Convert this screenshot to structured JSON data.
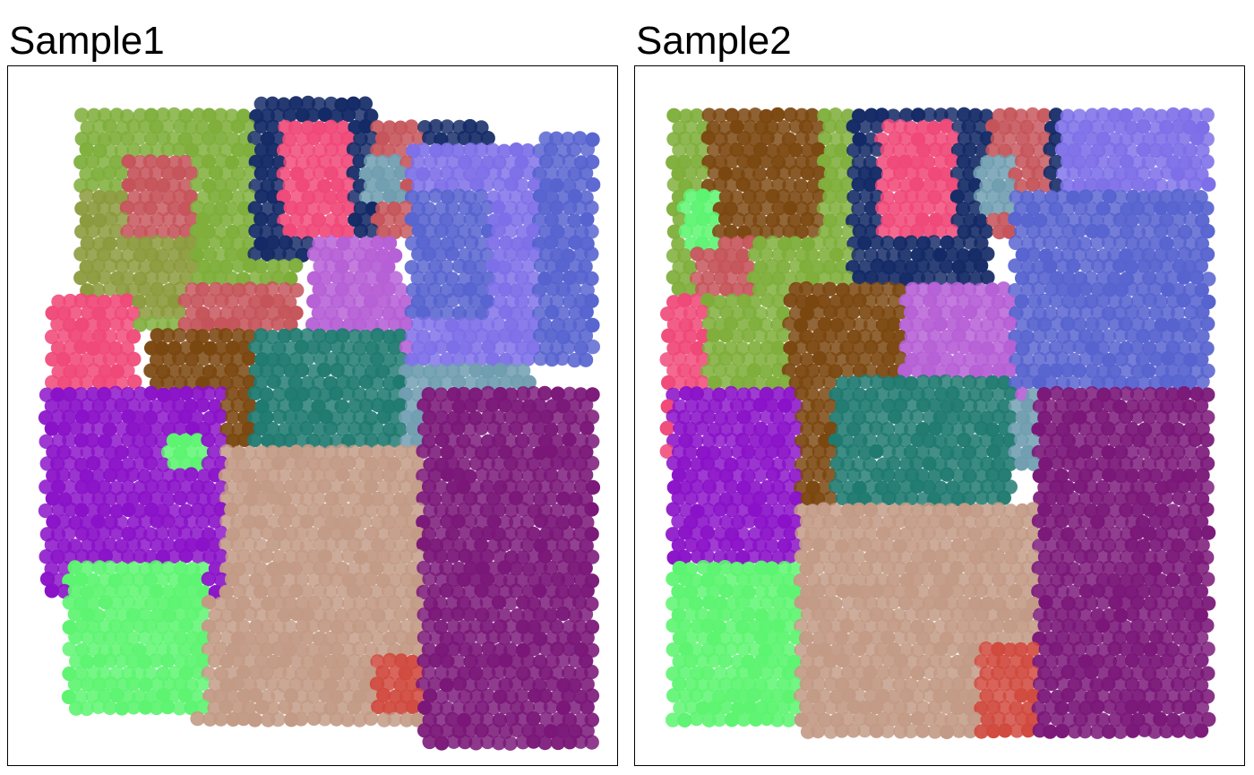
{
  "chart_data": [
    {
      "type": "scatter",
      "title": "Sample1",
      "xlabel": "",
      "ylabel": "",
      "grid": false,
      "legend": "none",
      "x_range": [
        0,
        1
      ],
      "y_range": [
        0,
        1
      ],
      "point_color": "by cluster",
      "clusters": [
        {
          "color": "#7eae3a",
          "regions": [
            [
              0.1,
              0.04,
              0.48,
              0.37
            ]
          ]
        },
        {
          "color": "#8b9a3c",
          "regions": [
            [
              0.1,
              0.17,
              0.3,
              0.35
            ]
          ]
        },
        {
          "color": "#c5545a",
          "regions": [
            [
              0.18,
              0.12,
              0.3,
              0.24
            ],
            [
              0.48,
              0.06,
              0.74,
              0.24
            ],
            [
              0.28,
              0.3,
              0.48,
              0.4
            ]
          ]
        },
        {
          "color": "#142a66",
          "regions": [
            [
              0.4,
              0.03,
              0.6,
              0.26
            ],
            [
              0.68,
              0.06,
              0.8,
              0.19
            ]
          ]
        },
        {
          "color": "#f04878",
          "regions": [
            [
              0.45,
              0.06,
              0.56,
              0.24
            ],
            [
              0.05,
              0.32,
              0.2,
              0.5
            ]
          ]
        },
        {
          "color": "#6f9db0",
          "regions": [
            [
              0.58,
              0.12,
              0.65,
              0.19
            ],
            [
              0.63,
              0.34,
              0.87,
              0.58
            ]
          ]
        },
        {
          "color": "#b65fd6",
          "regions": [
            [
              0.5,
              0.24,
              0.64,
              0.46
            ],
            [
              0.62,
              0.3,
              0.72,
              0.4
            ]
          ]
        },
        {
          "color": "#7d6fe8",
          "regions": [
            [
              0.66,
              0.1,
              0.96,
              0.42
            ]
          ]
        },
        {
          "color": "#5763cf",
          "regions": [
            [
              0.66,
              0.16,
              0.8,
              0.36
            ],
            [
              0.88,
              0.08,
              0.98,
              0.42
            ]
          ]
        },
        {
          "color": "#7b4710",
          "regions": [
            [
              0.22,
              0.38,
              0.48,
              0.5
            ],
            [
              0.33,
              0.38,
              0.43,
              0.7
            ]
          ]
        },
        {
          "color": "#1f7a70",
          "regions": [
            [
              0.4,
              0.38,
              0.65,
              0.84
            ]
          ]
        },
        {
          "color": "#c29a85",
          "regions": [
            [
              0.3,
              0.54,
              0.7,
              0.96
            ]
          ]
        },
        {
          "color": "#8a12c8",
          "regions": [
            [
              0.04,
              0.45,
              0.35,
              0.77
            ]
          ]
        },
        {
          "color": "#5cf470",
          "regions": [
            [
              0.08,
              0.71,
              0.32,
              0.94
            ],
            [
              0.25,
              0.52,
              0.32,
              0.58
            ]
          ]
        },
        {
          "color": "#d0493e",
          "regions": [
            [
              0.6,
              0.85,
              0.7,
              0.94
            ]
          ]
        },
        {
          "color": "#7a1778",
          "regions": [
            [
              0.68,
              0.45,
              0.98,
              0.99
            ]
          ]
        }
      ]
    },
    {
      "type": "scatter",
      "title": "Sample2",
      "xlabel": "",
      "ylabel": "",
      "grid": false,
      "legend": "none",
      "x_range": [
        0,
        1
      ],
      "y_range": [
        0,
        1
      ],
      "point_color": "by cluster",
      "clusters": [
        {
          "color": "#7eae3a",
          "regions": [
            [
              0.04,
              0.04,
              0.45,
              0.48
            ]
          ]
        },
        {
          "color": "#7b4710",
          "regions": [
            [
              0.1,
              0.05,
              0.3,
              0.24
            ],
            [
              0.24,
              0.3,
              0.46,
              0.73
            ]
          ]
        },
        {
          "color": "#c5545a",
          "regions": [
            [
              0.47,
              0.05,
              0.7,
              0.24
            ],
            [
              0.08,
              0.24,
              0.18,
              0.32
            ]
          ]
        },
        {
          "color": "#142a66",
          "regions": [
            [
              0.35,
              0.04,
              0.58,
              0.3
            ],
            [
              0.68,
              0.05,
              0.8,
              0.21
            ]
          ]
        },
        {
          "color": "#f04878",
          "regions": [
            [
              0.4,
              0.06,
              0.52,
              0.24
            ],
            [
              0.03,
              0.32,
              0.1,
              0.58
            ]
          ]
        },
        {
          "color": "#6f9db0",
          "regions": [
            [
              0.56,
              0.12,
              0.62,
              0.2
            ],
            [
              0.62,
              0.36,
              0.86,
              0.58
            ]
          ]
        },
        {
          "color": "#b65fd6",
          "regions": [
            [
              0.44,
              0.3,
              0.64,
              0.47
            ]
          ]
        },
        {
          "color": "#7d6fe8",
          "regions": [
            [
              0.7,
              0.05,
              0.96,
              0.36
            ]
          ]
        },
        {
          "color": "#5763cf",
          "regions": [
            [
              0.62,
              0.16,
              0.96,
              0.46
            ]
          ]
        },
        {
          "color": "#1f7a70",
          "regions": [
            [
              0.32,
              0.44,
              0.62,
              0.87
            ]
          ]
        },
        {
          "color": "#c29a85",
          "regions": [
            [
              0.26,
              0.63,
              0.68,
              0.97
            ]
          ]
        },
        {
          "color": "#8a12c8",
          "regions": [
            [
              0.04,
              0.46,
              0.26,
              0.78
            ]
          ]
        },
        {
          "color": "#5cf470",
          "regions": [
            [
              0.04,
              0.71,
              0.26,
              0.96
            ],
            [
              0.06,
              0.17,
              0.12,
              0.25
            ]
          ]
        },
        {
          "color": "#d0493e",
          "regions": [
            [
              0.56,
              0.84,
              0.68,
              0.97
            ]
          ]
        },
        {
          "color": "#7a1778",
          "regions": [
            [
              0.66,
              0.46,
              0.96,
              0.97
            ]
          ]
        }
      ]
    }
  ]
}
